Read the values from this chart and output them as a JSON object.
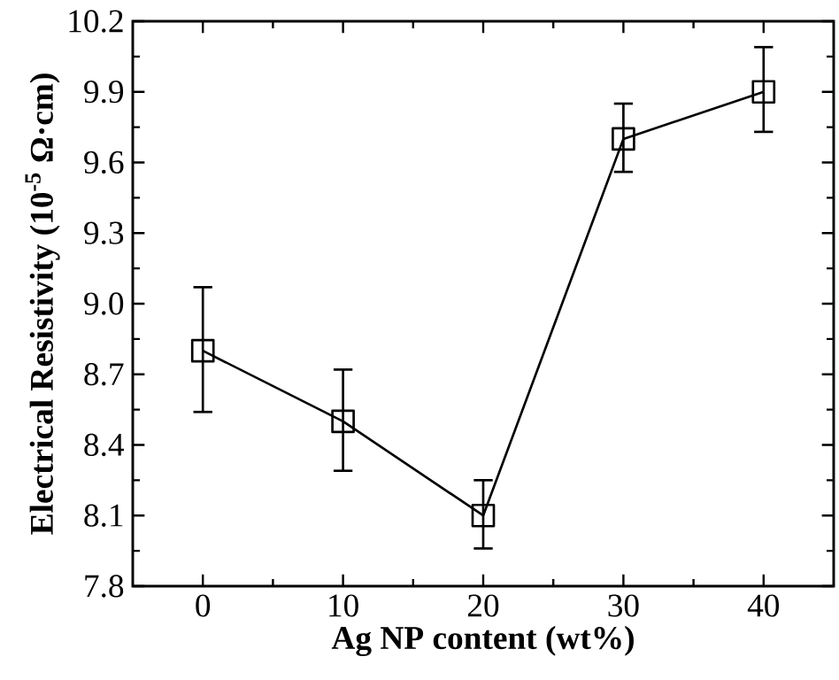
{
  "chart_data": {
    "type": "line",
    "xlabel": "Ag NP content (wt%)",
    "ylabel": "Electrical Resistivity (10$^{-5}$ Ω·cm)",
    "x": [
      0,
      10,
      20,
      30,
      40
    ],
    "values": [
      8.8,
      8.5,
      8.1,
      9.7,
      9.9
    ],
    "errors": [
      [
        8.54,
        9.07
      ],
      [
        8.29,
        8.72
      ],
      [
        7.96,
        8.25
      ],
      [
        9.56,
        9.85
      ],
      [
        9.73,
        10.09
      ]
    ],
    "color": "#000000",
    "marker": "square",
    "line_style": "solid",
    "xlim": [
      -5,
      45
    ],
    "xticks": [
      0,
      10,
      20,
      30,
      40
    ],
    "ylim": [
      7.8,
      10.2
    ],
    "yticks": [
      7.8,
      8.1,
      8.4,
      8.7,
      {
        "value": 9,
        "label": "9.0"
      },
      9.3,
      9.6,
      9.9,
      10.2
    ]
  }
}
